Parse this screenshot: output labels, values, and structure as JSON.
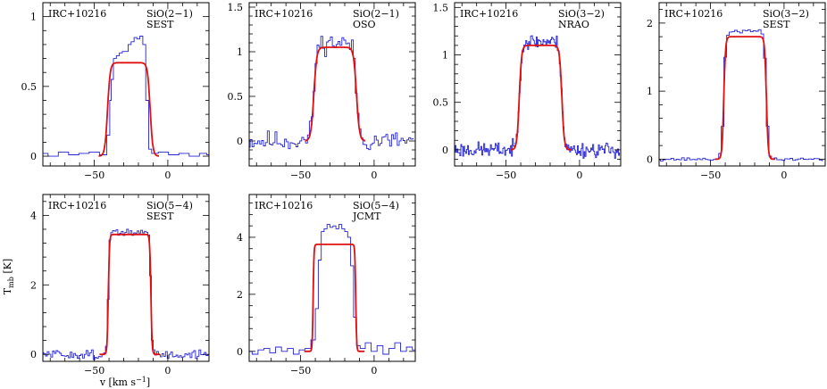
{
  "figure": {
    "xlabel_main": "v [km s",
    "xlabel_sup": "−1",
    "xlabel_close": "]",
    "ylabel_main": "T",
    "ylabel_sub": "mb",
    "ylabel_unit": " [K]"
  },
  "chart_data": [
    {
      "type": "line",
      "source": "IRC+10216",
      "line": "SiO(2−1)",
      "telescope": "SEST",
      "xlim": [
        -85,
        28
      ],
      "ylim": [
        -0.07,
        1.1
      ],
      "xticks": [
        -50,
        0
      ],
      "xtick_labels": [
        "−50",
        "0"
      ],
      "yticks": [
        0,
        0.5,
        1
      ],
      "ytick_labels": [
        "0",
        "0.5",
        "1"
      ],
      "series": [
        {
          "role": "observed",
          "x": [
            -85,
            -78,
            -71,
            -64,
            -57,
            -50,
            -43,
            -40,
            -39,
            -38,
            -36,
            -34,
            -32,
            -30,
            -28,
            -26,
            -24,
            -22,
            -20,
            -18,
            -16,
            -14,
            -12,
            -10,
            -3,
            4,
            11,
            18,
            25,
            28
          ],
          "y": [
            0.02,
            0.0,
            0.03,
            0.01,
            0.02,
            0.03,
            0.01,
            0.15,
            0.4,
            0.55,
            0.7,
            0.72,
            0.74,
            0.75,
            0.75,
            0.8,
            0.82,
            0.85,
            0.84,
            0.86,
            0.8,
            0.4,
            0.05,
            0.02,
            0.03,
            0.01,
            0.02,
            0.0,
            0.02,
            0.01
          ]
        },
        {
          "role": "model",
          "vc": -26.5,
          "vexp": 14.5,
          "peak": 0.67,
          "sharpness": 0.9
        }
      ]
    },
    {
      "type": "line",
      "source": "IRC+10216",
      "line": "SiO(2−1)",
      "telescope": "OSO",
      "xlim": [
        -85,
        28
      ],
      "ylim": [
        -0.28,
        1.55
      ],
      "xticks": [
        -50,
        0
      ],
      "xtick_labels": [
        "−50",
        "0"
      ],
      "yticks": [
        0,
        0.5,
        1,
        1.5
      ],
      "ytick_labels": [
        "0",
        "0.5",
        "1",
        "1.5"
      ],
      "series": [
        {
          "role": "observed",
          "noise": 0.07,
          "seed": 11,
          "bin": 1.3,
          "vc": -26.5,
          "vexp": 14.5,
          "peak": 1.1,
          "sharpness": 1.1
        },
        {
          "role": "model",
          "vc": -26.5,
          "vexp": 14.5,
          "peak": 1.05,
          "sharpness": 1.0
        }
      ]
    },
    {
      "type": "line",
      "source": "IRC+10216",
      "line": "SiO(3−2)",
      "telescope": "NRAO",
      "xlim": [
        -85,
        28
      ],
      "ylim": [
        -0.17,
        1.55
      ],
      "xticks": [
        -50,
        0
      ],
      "xtick_labels": [
        "−50",
        "0"
      ],
      "yticks": [
        0,
        0.5,
        1,
        1.5
      ],
      "ytick_labels": [
        "0",
        "0.5",
        "1",
        "1.5"
      ],
      "series": [
        {
          "role": "observed",
          "noise": 0.05,
          "seed": 23,
          "bin": 0.65,
          "vc": -26.5,
          "vexp": 14.5,
          "peak": 1.14,
          "sharpness": 0.85
        },
        {
          "role": "model",
          "vc": -26.5,
          "vexp": 14.5,
          "peak": 1.1,
          "sharpness": 0.8
        }
      ]
    },
    {
      "type": "line",
      "source": "IRC+10216",
      "line": "SiO(3−2)",
      "telescope": "SEST",
      "xlim": [
        -85,
        28
      ],
      "ylim": [
        -0.1,
        2.3
      ],
      "xticks": [
        -50,
        0
      ],
      "xtick_labels": [
        "−50",
        "0"
      ],
      "yticks": [
        0,
        1,
        2
      ],
      "ytick_labels": [
        "0",
        "1",
        "2"
      ],
      "series": [
        {
          "role": "observed",
          "noise": 0.015,
          "seed": 37,
          "bin": 1.8,
          "vc": -26.5,
          "vexp": 14.5,
          "peak": 1.88,
          "sharpness": 0.75
        },
        {
          "role": "model",
          "vc": -26.5,
          "vexp": 14.5,
          "peak": 1.8,
          "sharpness": 0.6
        }
      ]
    },
    {
      "type": "line",
      "source": "IRC+10216",
      "line": "SiO(5−4)",
      "telescope": "SEST",
      "xlim": [
        -85,
        28
      ],
      "ylim": [
        -0.2,
        4.6
      ],
      "xticks": [
        -50,
        0
      ],
      "xtick_labels": [
        "−50",
        "0"
      ],
      "yticks": [
        0,
        2,
        4
      ],
      "ytick_labels": [
        "0",
        "2",
        "4"
      ],
      "series": [
        {
          "role": "observed",
          "noise": 0.08,
          "seed": 51,
          "bin": 1.2,
          "vc": -26.0,
          "vexp": 14.5,
          "peak": 3.5,
          "sharpness": 0.45
        },
        {
          "role": "model",
          "vc": -26.0,
          "vexp": 14.5,
          "peak": 3.45,
          "sharpness": 0.4
        }
      ]
    },
    {
      "type": "line",
      "source": "IRC+10216",
      "line": "SiO(5−4)",
      "telescope": "JCMT",
      "xlim": [
        -85,
        28
      ],
      "ylim": [
        -0.35,
        5.5
      ],
      "xticks": [
        -50,
        0
      ],
      "xtick_labels": [
        "−50",
        "0"
      ],
      "yticks": [
        0,
        2,
        4
      ],
      "ytick_labels": [
        "0",
        "2",
        "4"
      ],
      "series": [
        {
          "role": "observed",
          "x": [
            -85,
            -81,
            -77,
            -73,
            -69,
            -65,
            -61,
            -57,
            -53,
            -49,
            -45,
            -41,
            -39,
            -37,
            -35,
            -33,
            -31,
            -29,
            -27,
            -25,
            -23,
            -21,
            -19,
            -17,
            -15,
            -13,
            -11,
            -8,
            -4,
            0,
            4,
            8,
            12,
            16,
            20,
            24,
            28
          ],
          "y": [
            0.0,
            -0.1,
            0.05,
            0.1,
            -0.05,
            0.15,
            0.0,
            0.1,
            -0.1,
            0.05,
            0.1,
            0.4,
            1.5,
            3.2,
            4.2,
            4.3,
            4.45,
            4.35,
            4.4,
            4.3,
            4.45,
            4.3,
            4.2,
            4.0,
            3.0,
            1.2,
            0.2,
            0.1,
            0.3,
            0.0,
            0.2,
            -0.1,
            0.1,
            0.3,
            0.0,
            0.15,
            0.05
          ]
        },
        {
          "role": "model",
          "vc": -27.0,
          "vexp": 14.5,
          "peak": 3.75,
          "sharpness": 0.3
        }
      ]
    }
  ]
}
